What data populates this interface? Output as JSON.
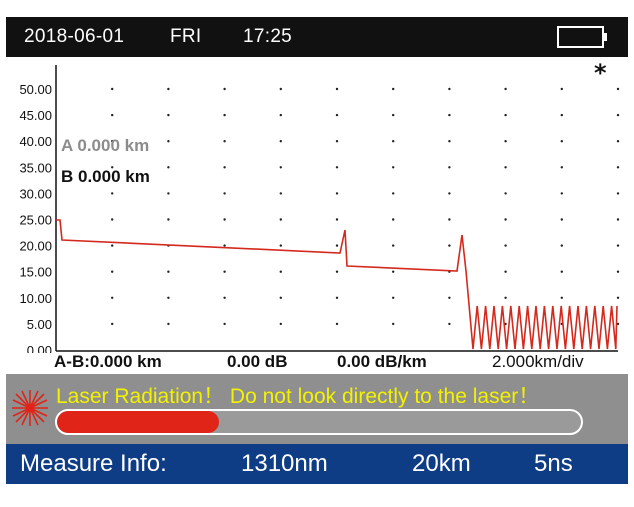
{
  "status_bar": {
    "date": "2018-06-01",
    "day": "FRI",
    "time": "17:25",
    "battery_icon": "battery-empty-icon"
  },
  "trace": {
    "marker_symbol": "*",
    "cursor_a": "A 0.000 km",
    "cursor_b": "B 0.000 km",
    "y_ticks": [
      "50.00",
      "45.00",
      "40.00",
      "35.00",
      "30.00",
      "25.00",
      "20.00",
      "15.00",
      "10.00",
      "5.00",
      "0.00"
    ],
    "trace_color": "#d42a1e",
    "grid": "dotted"
  },
  "measurements": {
    "a_b_distance": "A-B:0.000 km",
    "loss": "0.00 dB",
    "attenuation": "0.00 dB/km",
    "scale": "2.000km/div"
  },
  "warning": {
    "icon": "laser-radiation-icon",
    "text": "Laser Radiation！ Do not look directly to the laser！",
    "progress_fraction": 0.31,
    "progress_color": "#e02418",
    "text_color": "#f2f200"
  },
  "info_bar": {
    "label": "Measure Info:",
    "wavelength": "1310nm",
    "range": "20km",
    "pulse": "5ns"
  }
}
